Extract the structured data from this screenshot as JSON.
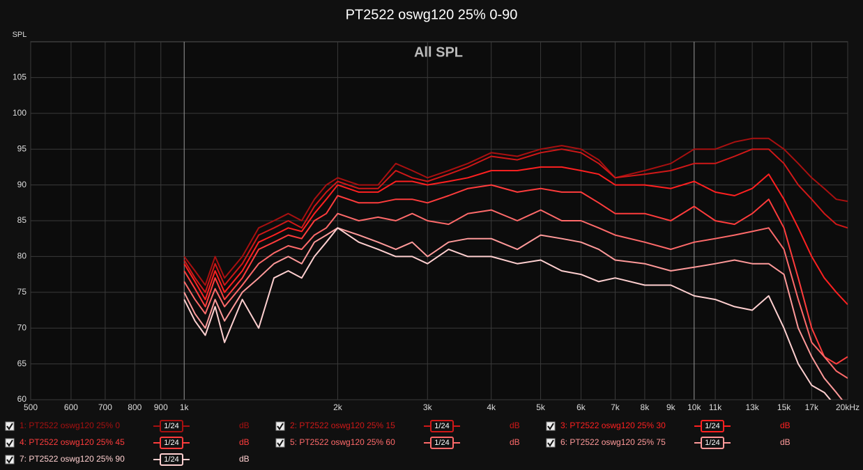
{
  "chart_data": {
    "type": "line",
    "title": "PT2522 oswg120 25% 0-90",
    "subtitle": "All SPL",
    "y_label": "SPL",
    "log_x": true,
    "grid": true,
    "xlim": [
      500,
      20000
    ],
    "ylim": [
      60,
      110
    ],
    "xticks": [
      500,
      600,
      700,
      800,
      900,
      {
        "value": 1000,
        "label": "1k"
      },
      {
        "value": 2000,
        "label": "2k"
      },
      {
        "value": 3000,
        "label": "3k"
      },
      {
        "value": 4000,
        "label": "4k"
      },
      {
        "value": 5000,
        "label": "5k"
      },
      {
        "value": 6000,
        "label": "6k"
      },
      {
        "value": 7000,
        "label": "7k"
      },
      {
        "value": 8000,
        "label": "8k"
      },
      {
        "value": 9000,
        "label": "9k"
      },
      {
        "value": 10000,
        "label": "10k"
      },
      {
        "value": 11000,
        "label": "11k"
      },
      {
        "value": 13000,
        "label": "13k"
      },
      {
        "value": 15000,
        "label": "15k"
      },
      {
        "value": 17000,
        "label": "17k"
      },
      {
        "value": 20000,
        "label": "20kHz"
      }
    ],
    "yticks": [
      60,
      65,
      70,
      75,
      80,
      85,
      90,
      95,
      100,
      105
    ],
    "x": [
      1000,
      1050,
      1100,
      1150,
      1200,
      1300,
      1400,
      1500,
      1600,
      1700,
      1800,
      1900,
      2000,
      2200,
      2400,
      2600,
      2800,
      3000,
      3300,
      3600,
      4000,
      4500,
      5000,
      5500,
      6000,
      6500,
      7000,
      8000,
      9000,
      10000,
      11000,
      12000,
      13000,
      14000,
      15000,
      16000,
      17000,
      18000,
      19000,
      20000
    ],
    "series": [
      {
        "name": "1: PT2522 oswg120 25% 0",
        "color": "#a81010",
        "smoothing": "1/24",
        "unit": "dB",
        "values": [
          80,
          78,
          76,
          80,
          77,
          80,
          84,
          85,
          86,
          85,
          88,
          90,
          91,
          90,
          90,
          93,
          92,
          91,
          92,
          93,
          94.5,
          94,
          95,
          95.5,
          95,
          93.5,
          91,
          92,
          93,
          95,
          95,
          96,
          96.5,
          96.5,
          95,
          93,
          91,
          89.5,
          88,
          87.7
        ]
      },
      {
        "name": "2: PT2522 oswg120 25% 15",
        "color": "#d01818",
        "smoothing": "1/24",
        "unit": "dB",
        "values": [
          79.5,
          77,
          75,
          79,
          76,
          79,
          83,
          84,
          85,
          84,
          87,
          89,
          90.5,
          89.5,
          89.5,
          92,
          91,
          90.5,
          91.5,
          92.5,
          94,
          93.5,
          94.5,
          95,
          94.5,
          93,
          91,
          91.5,
          92,
          93,
          93,
          94,
          95,
          95,
          93,
          90,
          88,
          86,
          84.5,
          84
        ]
      },
      {
        "name": "3: PT2522 oswg120 25% 30",
        "color": "#ff2020",
        "smoothing": "1/24",
        "unit": "dB",
        "values": [
          79,
          76.5,
          74,
          78,
          75,
          78,
          82,
          83,
          84,
          83.5,
          86,
          88,
          90,
          89,
          89,
          90.5,
          90.5,
          90,
          90.5,
          91,
          92,
          92,
          92.5,
          92.5,
          92,
          91.5,
          90,
          90,
          89.5,
          90.5,
          89,
          88.5,
          89.5,
          91.5,
          88,
          84,
          80,
          77,
          75,
          73.3
        ]
      },
      {
        "name": "4: PT2522 oswg120 25% 45",
        "color": "#ff3c3c",
        "smoothing": "1/24",
        "unit": "dB",
        "values": [
          78,
          75.5,
          73,
          77,
          74,
          77,
          81,
          82,
          83,
          82.5,
          85,
          86,
          88.5,
          87.5,
          87.5,
          88,
          88,
          87.5,
          88.5,
          89.5,
          90,
          89,
          89.5,
          89,
          89,
          87.5,
          86,
          86,
          85,
          87,
          85,
          84.5,
          86,
          88,
          84,
          77,
          70,
          66,
          65,
          66
        ]
      },
      {
        "name": "5: PT2522 oswg120 25% 60",
        "color": "#ff6a6a",
        "smoothing": "1/24",
        "unit": "dB",
        "values": [
          76.5,
          74,
          72,
          75.5,
          73,
          76,
          79,
          80.5,
          81.5,
          81,
          83,
          84,
          86,
          85,
          85.5,
          85,
          86,
          85,
          84.5,
          86,
          86.5,
          85,
          86.5,
          85,
          85,
          84,
          83,
          82,
          81,
          82,
          82.5,
          83,
          83.5,
          84,
          81,
          74,
          68,
          66,
          64,
          63
        ]
      },
      {
        "name": "6: PT2522 oswg120 25% 75",
        "color": "#ff9a9a",
        "smoothing": "1/24",
        "unit": "dB",
        "values": [
          75,
          72,
          70,
          74,
          71,
          75,
          77,
          79,
          80,
          79,
          82,
          83,
          84,
          83,
          82,
          81,
          82,
          80,
          82,
          82.5,
          82.5,
          81,
          83,
          82.5,
          82,
          81,
          79.5,
          79,
          78,
          78.5,
          79,
          79.5,
          79,
          79,
          77.5,
          70,
          66,
          63,
          61,
          59
        ]
      },
      {
        "name": "7: PT2522 oswg120 25% 90",
        "color": "#ffd0d0",
        "smoothing": "1/24",
        "unit": "dB",
        "values": [
          74,
          71,
          69,
          73,
          68,
          74,
          70,
          77,
          78,
          77,
          80,
          82,
          84,
          82,
          81,
          80,
          80,
          79,
          81,
          80,
          80,
          79,
          79.5,
          78,
          77.5,
          76.5,
          77,
          76,
          76,
          74.5,
          74,
          73,
          72.5,
          74.5,
          70,
          65,
          62,
          61,
          59,
          56
        ]
      }
    ]
  }
}
